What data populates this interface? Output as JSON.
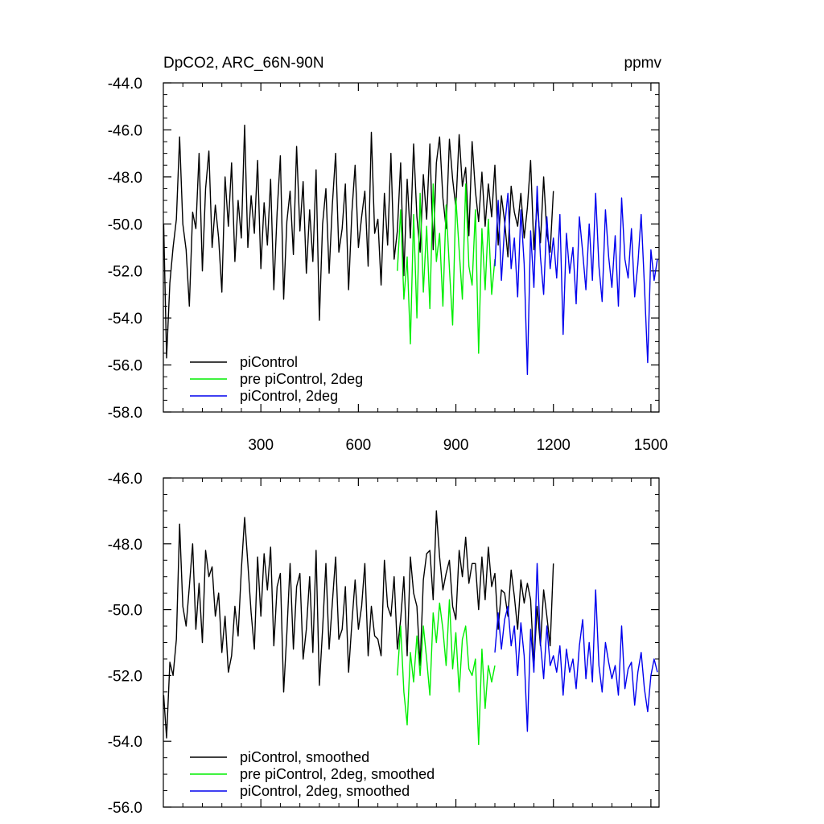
{
  "chart_data": [
    {
      "type": "line",
      "title": "DpCO2, ARC_66N-90N",
      "units_label": "ppmv",
      "xlim": [
        0,
        1525
      ],
      "ylim": [
        -58,
        -44
      ],
      "x_ticks": [
        300,
        600,
        900,
        1200,
        1500
      ],
      "x_tick_labels": [
        "300",
        "600",
        "900",
        "1200",
        "1500"
      ],
      "y_ticks": [
        -58,
        -56,
        -54,
        -52,
        -50,
        -48,
        -46,
        -44
      ],
      "y_tick_labels": [
        "-58.0",
        "-56.0",
        "-54.0",
        "-52.0",
        "-50.0",
        "-48.0",
        "-46.0",
        "-44.0"
      ],
      "legend_position": "bottom-left",
      "grid": false,
      "series": [
        {
          "name": "piControl",
          "color": "#000000",
          "x": [
            1,
            10,
            20,
            30,
            40,
            50,
            60,
            70,
            80,
            90,
            100,
            110,
            120,
            130,
            140,
            150,
            160,
            170,
            180,
            190,
            200,
            210,
            220,
            230,
            240,
            250,
            260,
            270,
            280,
            290,
            300,
            310,
            320,
            330,
            340,
            350,
            360,
            370,
            380,
            390,
            400,
            410,
            420,
            430,
            440,
            450,
            460,
            470,
            480,
            490,
            500,
            510,
            520,
            530,
            540,
            550,
            560,
            570,
            580,
            590,
            600,
            610,
            620,
            630,
            640,
            650,
            660,
            670,
            680,
            690,
            700,
            710,
            720,
            730,
            740,
            750,
            760,
            770,
            780,
            790,
            800,
            810,
            820,
            830,
            840,
            850,
            860,
            870,
            880,
            890,
            900,
            910,
            920,
            930,
            940,
            950,
            960,
            970,
            980,
            990,
            1000,
            1010,
            1020,
            1030,
            1040,
            1050,
            1060,
            1070,
            1080,
            1090,
            1100,
            1110,
            1120,
            1130,
            1140,
            1150,
            1160,
            1170,
            1180,
            1190,
            1200
          ],
          "y": [
            -50.0,
            -55.7,
            -52.5,
            -51.0,
            -49.8,
            -46.3,
            -50.0,
            -51.1,
            -53.5,
            -49.5,
            -50.2,
            -47.0,
            -52.0,
            -48.5,
            -46.9,
            -51.0,
            -49.2,
            -50.6,
            -52.9,
            -48.0,
            -50.1,
            -47.4,
            -51.6,
            -49.0,
            -50.6,
            -45.8,
            -51.0,
            -48.8,
            -50.4,
            -47.3,
            -51.9,
            -49.1,
            -50.9,
            -48.1,
            -52.8,
            -49.5,
            -47.1,
            -53.2,
            -49.9,
            -48.6,
            -51.3,
            -46.7,
            -50.3,
            -48.2,
            -52.1,
            -49.4,
            -51.6,
            -47.7,
            -54.1,
            -50.0,
            -48.5,
            -52.1,
            -49.2,
            -47.0,
            -51.2,
            -50.2,
            -48.3,
            -52.8,
            -49.5,
            -47.5,
            -51.0,
            -49.7,
            -48.6,
            -51.8,
            -46.1,
            -50.4,
            -49.8,
            -52.6,
            -48.7,
            -50.9,
            -47.0,
            -51.5,
            -50.3,
            -47.4,
            -52.2,
            -48.1,
            -50.6,
            -46.6,
            -49.7,
            -51.2,
            -47.9,
            -49.8,
            -46.6,
            -51.1,
            -47.4,
            -46.3,
            -48.9,
            -50.2,
            -46.4,
            -48.1,
            -49.3,
            -46.2,
            -48.4,
            -47.6,
            -50.5,
            -46.5,
            -48.6,
            -49.9,
            -47.8,
            -50.1,
            -48.3,
            -49.7,
            -47.5,
            -50.9,
            -48.8,
            -49.9,
            -51.4,
            -48.4,
            -49.5,
            -50.1,
            -48.7,
            -50.6,
            -49.3,
            -47.3,
            -51.1,
            -49.1,
            -50.8,
            -48.0,
            -50.4,
            -51.2,
            -48.6
          ]
        },
        {
          "name": "pre piControl, 2deg",
          "color": "#00ee00",
          "x": [
            720,
            730,
            740,
            750,
            760,
            770,
            780,
            790,
            800,
            810,
            820,
            830,
            840,
            850,
            860,
            870,
            880,
            890,
            900,
            910,
            920,
            930,
            940,
            950,
            960,
            970,
            980,
            990,
            1000,
            1010,
            1020
          ],
          "y": [
            -52.0,
            -49.4,
            -53.2,
            -51.4,
            -55.1,
            -49.6,
            -54.0,
            -48.7,
            -52.9,
            -50.1,
            -53.6,
            -48.3,
            -51.6,
            -50.4,
            -53.5,
            -49.2,
            -51.9,
            -54.3,
            -48.9,
            -51.1,
            -53.2,
            -48.3,
            -51.8,
            -52.6,
            -49.4,
            -55.5,
            -50.2,
            -52.8,
            -49.8,
            -53.0,
            -51.5
          ]
        },
        {
          "name": "piControl, 2deg",
          "color": "#0000ee",
          "x": [
            1020,
            1030,
            1040,
            1050,
            1060,
            1070,
            1080,
            1090,
            1100,
            1110,
            1120,
            1130,
            1140,
            1150,
            1160,
            1170,
            1180,
            1190,
            1200,
            1210,
            1220,
            1230,
            1240,
            1250,
            1260,
            1270,
            1280,
            1290,
            1300,
            1310,
            1320,
            1330,
            1340,
            1350,
            1360,
            1370,
            1380,
            1390,
            1400,
            1410,
            1420,
            1430,
            1440,
            1450,
            1460,
            1470,
            1480,
            1490,
            1500,
            1510,
            1520
          ],
          "y": [
            -51.8,
            -49.0,
            -52.4,
            -50.1,
            -48.7,
            -51.9,
            -50.6,
            -53.1,
            -49.4,
            -51.7,
            -56.4,
            -50.3,
            -52.7,
            -48.4,
            -51.4,
            -53.0,
            -49.7,
            -51.9,
            -50.6,
            -52.3,
            -49.6,
            -54.7,
            -50.4,
            -52.1,
            -51.0,
            -53.4,
            -49.7,
            -51.2,
            -52.8,
            -50.0,
            -52.4,
            -48.7,
            -51.8,
            -53.3,
            -49.4,
            -51.4,
            -52.7,
            -50.5,
            -53.5,
            -48.9,
            -51.5,
            -52.3,
            -50.2,
            -53.1,
            -51.7,
            -49.6,
            -52.6,
            -55.9,
            -51.1,
            -52.4,
            -51.5
          ]
        }
      ]
    },
    {
      "type": "line",
      "xlim": [
        0,
        1525
      ],
      "ylim": [
        -56,
        -46
      ],
      "x_ticks": [
        300,
        600,
        900,
        1200,
        1500
      ],
      "y_ticks": [
        -56,
        -54,
        -52,
        -50,
        -48,
        -46
      ],
      "y_tick_labels": [
        "-56.0",
        "-54.0",
        "-52.0",
        "-50.0",
        "-48.0",
        "-46.0"
      ],
      "legend_position": "bottom-left",
      "grid": false,
      "series": [
        {
          "name": "piControl, smoothed",
          "color": "#000000",
          "x": [
            1,
            10,
            20,
            30,
            40,
            50,
            60,
            70,
            80,
            90,
            100,
            110,
            120,
            130,
            140,
            150,
            160,
            170,
            180,
            190,
            200,
            210,
            220,
            230,
            240,
            250,
            260,
            270,
            280,
            290,
            300,
            310,
            320,
            330,
            340,
            350,
            360,
            370,
            380,
            390,
            400,
            410,
            420,
            430,
            440,
            450,
            460,
            470,
            480,
            490,
            500,
            510,
            520,
            530,
            540,
            550,
            560,
            570,
            580,
            590,
            600,
            610,
            620,
            630,
            640,
            650,
            660,
            670,
            680,
            690,
            700,
            710,
            720,
            730,
            740,
            750,
            760,
            770,
            780,
            790,
            800,
            810,
            820,
            830,
            840,
            850,
            860,
            870,
            880,
            890,
            900,
            910,
            920,
            930,
            940,
            950,
            960,
            970,
            980,
            990,
            1000,
            1010,
            1020,
            1030,
            1040,
            1050,
            1060,
            1070,
            1080,
            1090,
            1100,
            1110,
            1120,
            1130,
            1140,
            1150,
            1160,
            1170,
            1180,
            1190,
            1200
          ],
          "y": [
            -52.6,
            -53.9,
            -51.6,
            -52.0,
            -50.9,
            -47.4,
            -49.9,
            -50.5,
            -49.3,
            -48.0,
            -50.6,
            -49.2,
            -51.0,
            -48.2,
            -49.0,
            -48.7,
            -50.2,
            -49.5,
            -51.3,
            -50.2,
            -51.9,
            -51.4,
            -49.9,
            -50.8,
            -48.8,
            -47.2,
            -48.6,
            -50.1,
            -51.2,
            -48.4,
            -50.2,
            -48.3,
            -49.4,
            -48.1,
            -51.1,
            -49.3,
            -48.9,
            -52.5,
            -50.7,
            -48.6,
            -51.2,
            -49.3,
            -48.9,
            -51.5,
            -50.6,
            -49.0,
            -51.3,
            -48.2,
            -52.3,
            -50.6,
            -48.6,
            -51.2,
            -49.8,
            -48.4,
            -50.9,
            -50.6,
            -49.3,
            -51.9,
            -50.4,
            -49.1,
            -50.6,
            -49.9,
            -48.6,
            -51.4,
            -49.9,
            -50.8,
            -50.9,
            -51.4,
            -48.5,
            -49.9,
            -50.2,
            -49.0,
            -51.2,
            -50.3,
            -49.0,
            -51.4,
            -48.4,
            -49.5,
            -49.9,
            -51.7,
            -49.1,
            -48.3,
            -48.2,
            -49.7,
            -47.0,
            -48.4,
            -49.4,
            -48.9,
            -48.5,
            -49.9,
            -50.3,
            -48.2,
            -49.0,
            -47.8,
            -49.2,
            -48.6,
            -48.6,
            -50.0,
            -48.4,
            -49.7,
            -48.1,
            -49.3,
            -48.9,
            -50.6,
            -49.4,
            -49.5,
            -50.2,
            -48.8,
            -49.6,
            -50.6,
            -49.1,
            -49.8,
            -49.2,
            -49.7,
            -51.7,
            -49.9,
            -51.1,
            -49.4,
            -50.2,
            -51.1,
            -48.6
          ]
        },
        {
          "name": "pre piControl, 2deg, smoothed",
          "color": "#00ee00",
          "x": [
            720,
            730,
            740,
            750,
            760,
            770,
            780,
            790,
            800,
            810,
            820,
            830,
            840,
            850,
            860,
            870,
            880,
            890,
            900,
            910,
            920,
            930,
            940,
            950,
            960,
            970,
            980,
            990,
            1000,
            1010,
            1020
          ],
          "y": [
            -52.0,
            -50.5,
            -52.5,
            -53.5,
            -51.3,
            -52.2,
            -50.8,
            -52.0,
            -50.5,
            -51.5,
            -52.6,
            -50.1,
            -51.0,
            -49.8,
            -50.6,
            -51.7,
            -49.7,
            -51.8,
            -50.7,
            -52.5,
            -50.9,
            -50.5,
            -51.8,
            -52.0,
            -51.5,
            -54.1,
            -51.2,
            -53.0,
            -51.7,
            -52.2,
            -51.7
          ]
        },
        {
          "name": "piControl, 2deg, smoothed",
          "color": "#0000ee",
          "x": [
            1020,
            1030,
            1040,
            1050,
            1060,
            1070,
            1080,
            1090,
            1100,
            1110,
            1120,
            1130,
            1140,
            1150,
            1160,
            1170,
            1180,
            1190,
            1200,
            1210,
            1220,
            1230,
            1240,
            1250,
            1260,
            1270,
            1280,
            1290,
            1300,
            1310,
            1320,
            1330,
            1340,
            1350,
            1360,
            1370,
            1380,
            1390,
            1400,
            1410,
            1420,
            1430,
            1440,
            1450,
            1460,
            1470,
            1480,
            1490,
            1500,
            1510,
            1520
          ],
          "y": [
            -51.3,
            -50.1,
            -51.2,
            -50.3,
            -49.9,
            -51.1,
            -50.5,
            -52.0,
            -50.4,
            -51.4,
            -53.7,
            -50.6,
            -51.9,
            -48.6,
            -51.0,
            -52.1,
            -50.5,
            -51.7,
            -51.4,
            -51.9,
            -51.1,
            -52.6,
            -51.2,
            -51.9,
            -51.5,
            -52.4,
            -51.1,
            -50.3,
            -52.1,
            -51.0,
            -52.2,
            -49.4,
            -51.7,
            -52.5,
            -51.0,
            -51.6,
            -52.1,
            -51.7,
            -52.6,
            -50.5,
            -52.4,
            -51.8,
            -51.6,
            -52.9,
            -51.9,
            -51.3,
            -52.4,
            -53.1,
            -52.0,
            -51.5,
            -51.9
          ]
        }
      ]
    }
  ]
}
